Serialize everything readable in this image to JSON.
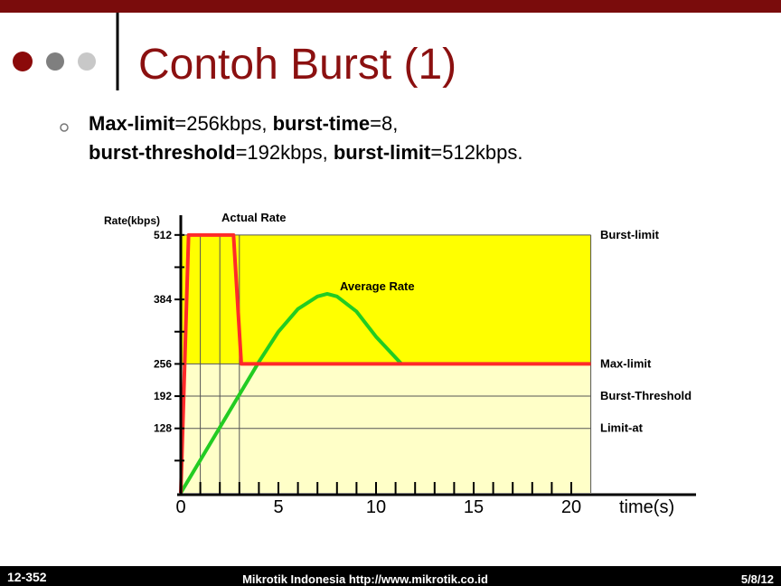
{
  "slide": {
    "title": "Contoh Burst (1)",
    "bullet": [
      [
        {
          "text": "Max-limit",
          "bold": true
        },
        {
          "text": "=256kbps, ",
          "bold": false
        },
        {
          "text": "burst-time",
          "bold": true
        },
        {
          "text": "=8,",
          "bold": false
        }
      ],
      [
        {
          "text": "burst-threshold",
          "bold": true
        },
        {
          "text": "=192kbps, ",
          "bold": false
        },
        {
          "text": "burst-limit",
          "bold": true
        },
        {
          "text": "=512kbps.",
          "bold": false
        }
      ]
    ],
    "footer": {
      "left": "12-352",
      "center": "Mikrotik Indonesia http://www.mikrotik.co.id",
      "right": "5/8/12"
    }
  },
  "chart_data": {
    "type": "line",
    "y_label": "Rate(kbps)",
    "x_label": "time(s)",
    "xlim": [
      0,
      21
    ],
    "ylim": [
      0,
      550
    ],
    "xticks": [
      0,
      5,
      10,
      15,
      20
    ],
    "x_minor_ticks": [
      1,
      2,
      3,
      4,
      6,
      7,
      8,
      9,
      11,
      12,
      13,
      14,
      16,
      17,
      18,
      19
    ],
    "yticks": [
      128,
      192,
      256,
      384,
      512
    ],
    "y_minor_ticks": [
      64,
      320,
      448
    ],
    "bands": [
      {
        "from": 256,
        "to": 512,
        "color": "#ffff00"
      },
      {
        "from": 0,
        "to": 256,
        "color": "#ffffc8"
      }
    ],
    "reference_lines": [
      {
        "value": 512,
        "label": "Burst-limit"
      },
      {
        "value": 256,
        "label": "Max-limit"
      },
      {
        "value": 192,
        "label": "Burst-Threshold"
      },
      {
        "value": 128,
        "label": "Limit-at"
      }
    ],
    "vertical_lines": [
      1,
      2,
      3
    ],
    "series": [
      {
        "name": "Average Rate",
        "color": "#22cc22",
        "x": [
          0,
          2,
          4,
          5,
          6,
          7,
          7.5,
          8,
          9,
          10,
          11.3
        ],
        "values": [
          0,
          130,
          260,
          320,
          365,
          390,
          395,
          390,
          360,
          310,
          256
        ]
      },
      {
        "name": "Actual Rate",
        "color": "#ff2a2a",
        "x": [
          0,
          0.4,
          2.7,
          3.1,
          21
        ],
        "values": [
          0,
          512,
          512,
          256,
          256
        ]
      }
    ]
  }
}
